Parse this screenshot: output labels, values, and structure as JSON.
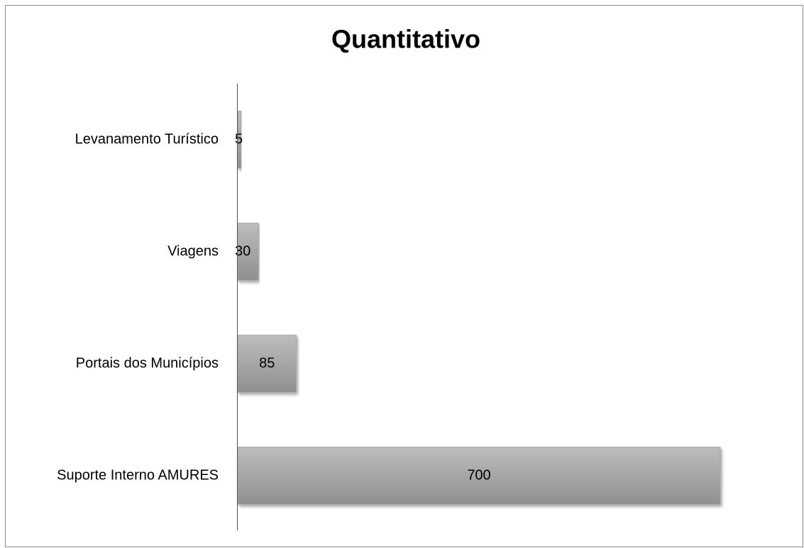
{
  "chart_data": {
    "type": "barh",
    "title": "Quantitativo",
    "categories": [
      "Levanamento Turístico",
      "Viagens",
      "Portais dos Municípios",
      "Suporte Interno AMURES"
    ],
    "values": [
      5,
      30,
      85,
      700
    ],
    "color": "#a6a6a6"
  }
}
